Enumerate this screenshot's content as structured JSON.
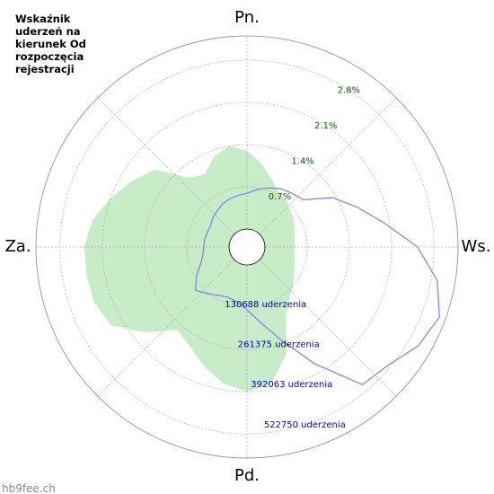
{
  "chart_data": {
    "type": "polar",
    "title": "Wskaźnik uderzeń na kierunek Od rozpoczęcia rejestracji",
    "watermark": "hb9fee.ch",
    "x": [
      0,
      10,
      20,
      30,
      40,
      50,
      60,
      70,
      80,
      90,
      100,
      110,
      120,
      130,
      140,
      150,
      160,
      170,
      180,
      190,
      200,
      210,
      220,
      230,
      240,
      250,
      260,
      270,
      280,
      290,
      300,
      310,
      320,
      330,
      340,
      350
    ],
    "xlim": [
      0,
      360
    ],
    "xticks": [
      {
        "value": 0,
        "label": "Pn."
      },
      {
        "value": 90,
        "label": "Ws."
      },
      {
        "value": 180,
        "label": "Pd."
      },
      {
        "value": 270,
        "label": "Za."
      }
    ],
    "rlim": [
      0,
      3.2
    ],
    "rticks": [
      {
        "value": 0.7,
        "label": "0.7%"
      },
      {
        "value": 1.4,
        "label": "1.4%"
      },
      {
        "value": 2.1,
        "label": "2.1%"
      },
      {
        "value": 2.8,
        "label": "2.8%"
      }
    ],
    "r2lim": [
      0,
      597429
    ],
    "r2ticks": [
      {
        "value": 130688,
        "label": "130688 uderzenia"
      },
      {
        "value": 261375,
        "label": "261375 uderzenia"
      },
      {
        "value": 392063,
        "label": "392063 uderzenia"
      },
      {
        "value": 522750,
        "label": "522750 uderzenia"
      }
    ],
    "series": [
      {
        "color": "#c8ecc8",
        "values": [
          1.3,
          1.1,
          0.9,
          0.75,
          0.7,
          0.65,
          0.6,
          0.55,
          0.5,
          0.5,
          0.5,
          0.55,
          0.6,
          0.7,
          0.8,
          1.0,
          1.6,
          2.0,
          2.1,
          2.0,
          1.8,
          1.6,
          1.5,
          1.9,
          2.3,
          2.4,
          2.4,
          2.4,
          2.3,
          2.1,
          1.9,
          1.7,
          1.2,
          1.1,
          1.3,
          1.4
        ]
      },
      {
        "color": "#7b7bff",
        "axis": "r2",
        "values": [
          111000,
          125000,
          139000,
          153000,
          161000,
          172000,
          250000,
          306000,
          375000,
          472000,
          542000,
          578000,
          556000,
          514000,
          500000,
          361000,
          250000,
          181000,
          139000,
          117000,
          111000,
          117000,
          133000,
          153000,
          125000,
          97000,
          83000,
          78000,
          78000,
          75000,
          75000,
          83000,
          89000,
          97000,
          103000,
          106000
        ]
      }
    ]
  }
}
